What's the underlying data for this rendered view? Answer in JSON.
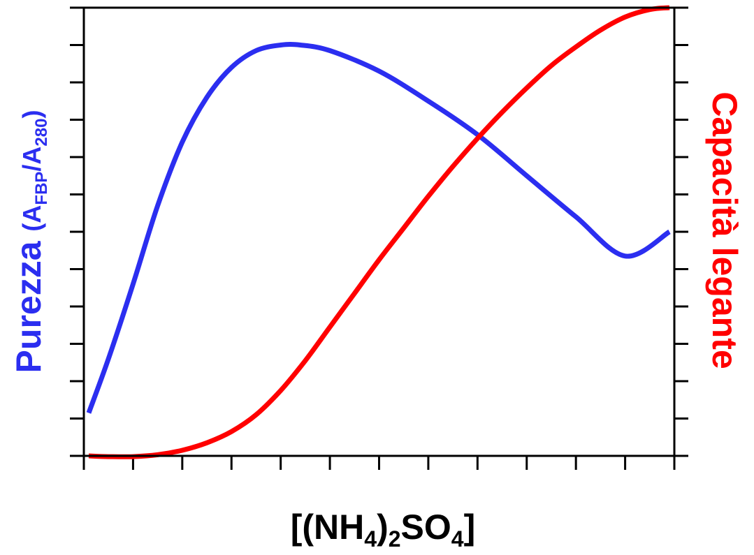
{
  "chart_data": {
    "type": "line",
    "xlabel": {
      "parts": [
        {
          "text": "[(NH",
          "sub": false
        },
        {
          "text": "4",
          "sub": true
        },
        {
          "text": ")",
          "sub": false
        },
        {
          "text": "2",
          "sub": true
        },
        {
          "text": "SO",
          "sub": false
        },
        {
          "text": "4",
          "sub": true
        },
        {
          "text": "]",
          "sub": false
        }
      ]
    },
    "ylabel_left": {
      "main": "Purezza",
      "parts": [
        {
          "text": "(A",
          "sub": false
        },
        {
          "text": "FBP",
          "sub": true
        },
        {
          "text": "/A",
          "sub": false
        },
        {
          "text": "280",
          "sub": true
        },
        {
          "text": ")",
          "sub": false
        }
      ],
      "color": "#2b2ef0"
    },
    "ylabel_right": {
      "text": "Capacità legante",
      "color": "#ff0000"
    },
    "xlim": [
      0,
      12
    ],
    "ylim": [
      0,
      12
    ],
    "x_ticks": [
      0,
      1,
      2,
      3,
      4,
      5,
      6,
      7,
      8,
      9,
      10,
      11,
      12
    ],
    "y_ticks": [
      0,
      1,
      2,
      3,
      4,
      5,
      6,
      7,
      8,
      9,
      10,
      11,
      12
    ],
    "tick_labels_shown": false,
    "grid": false,
    "series": [
      {
        "color": "#2b2ef0",
        "axis": "left",
        "x": [
          0.1,
          0.5,
          1.0,
          1.5,
          2.0,
          2.5,
          3.0,
          3.5,
          4.0,
          4.4,
          5.0,
          6.0,
          7.0,
          8.0,
          9.0,
          10.0,
          11.0,
          11.9
        ],
        "y": [
          1.15,
          2.6,
          4.6,
          6.7,
          8.4,
          9.6,
          10.4,
          10.85,
          11.0,
          11.0,
          10.85,
          10.3,
          9.5,
          8.6,
          7.5,
          6.4,
          5.35,
          6.0
        ]
      },
      {
        "color": "#ff0000",
        "axis": "right",
        "x": [
          0.1,
          0.5,
          1.0,
          1.5,
          2.0,
          2.5,
          3.0,
          3.5,
          4.0,
          4.5,
          5.0,
          5.5,
          6.0,
          6.5,
          7.0,
          7.5,
          8.0,
          8.5,
          9.0,
          9.5,
          10.0,
          10.5,
          11.0,
          11.5,
          11.9
        ],
        "y": [
          0.0,
          -0.02,
          -0.02,
          0.03,
          0.15,
          0.35,
          0.65,
          1.1,
          1.75,
          2.55,
          3.45,
          4.35,
          5.25,
          6.1,
          6.95,
          7.75,
          8.5,
          9.2,
          9.85,
          10.45,
          10.95,
          11.4,
          11.75,
          11.95,
          12.0
        ]
      }
    ]
  }
}
